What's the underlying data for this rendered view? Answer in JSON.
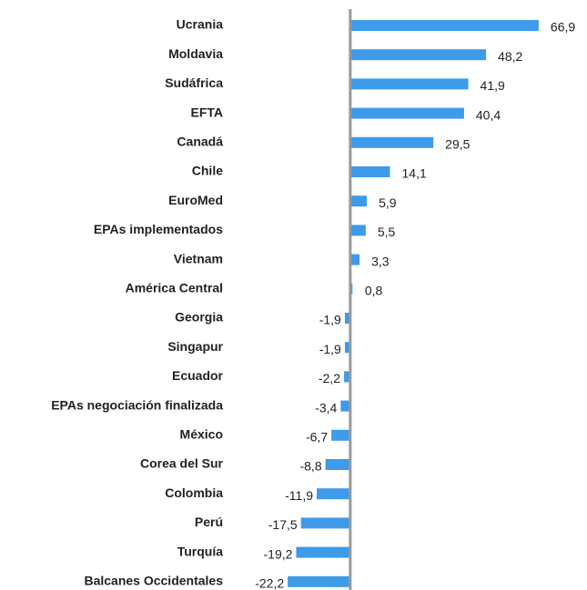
{
  "chart_data": {
    "type": "bar",
    "orientation": "horizontal",
    "color": "#3d9be9",
    "categories": [
      "Ucrania",
      "Moldavia",
      "Sudáfrica",
      "EFTA",
      "Canadá",
      "Chile",
      "EuroMed",
      "EPAs implementados",
      "Vietnam",
      "América Central",
      "Georgia",
      "Singapur",
      "Ecuador",
      "EPAs negociación finalizada",
      "México",
      "Corea del Sur",
      "Colombia",
      "Perú",
      "Turquía",
      "Balcanes Occidentales"
    ],
    "values": [
      66.9,
      48.2,
      41.9,
      40.4,
      29.5,
      14.1,
      5.9,
      5.5,
      3.3,
      0.8,
      -1.9,
      -1.9,
      -2.2,
      -3.4,
      -6.7,
      -8.8,
      -11.9,
      -17.5,
      -19.2,
      -22.2
    ],
    "value_labels": [
      "66,9",
      "48,2",
      "41,9",
      "40,4",
      "29,5",
      "14,1",
      "5,9",
      "5,5",
      "3,3",
      "0,8",
      "-1,9",
      "-1,9",
      "-2,2",
      "-3,4",
      "-6,7",
      "-8,8",
      "-11,9",
      "-17,5",
      "-19,2",
      "-22,2"
    ],
    "xlim": [
      -30,
      75
    ]
  }
}
